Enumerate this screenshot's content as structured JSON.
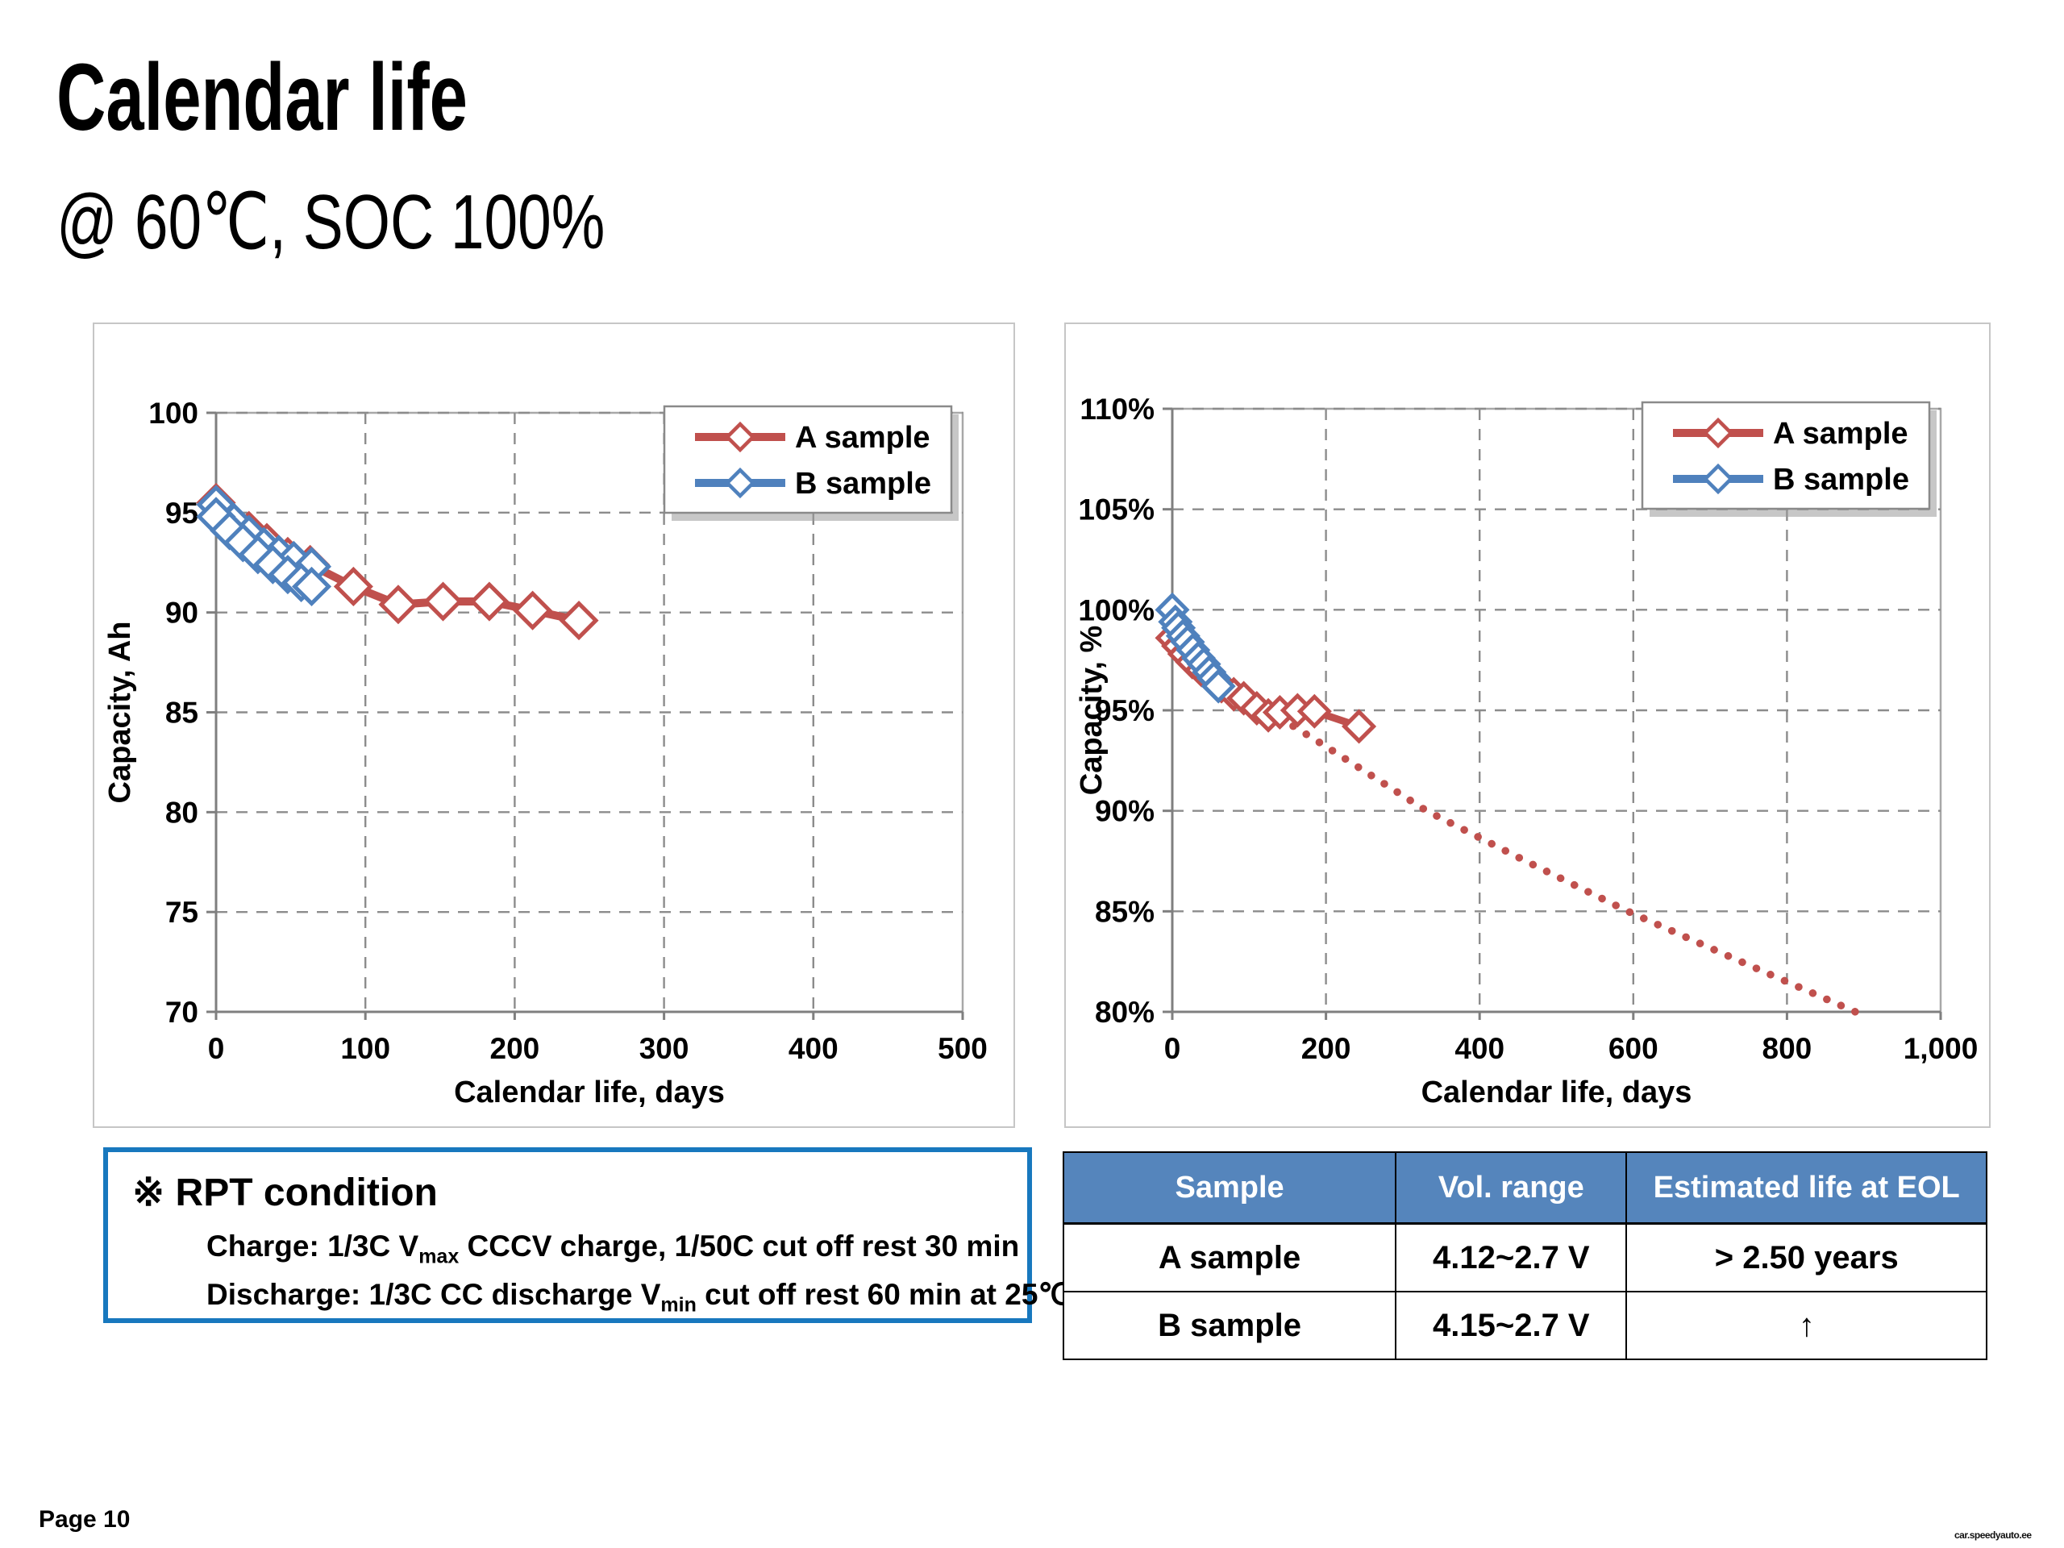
{
  "slide": {
    "title": "Calendar life",
    "subtitle": "@ 60℃, SOC 100%",
    "page_label": "Page 10",
    "watermark": "car.speedyauto.ee"
  },
  "colors": {
    "a_sample": "#c0504d",
    "b_sample": "#4f81bd",
    "table_header_bg": "#5585bc",
    "rpt_border": "#1878be",
    "grid": "#8c8c8c",
    "axis": "#7f7f7f"
  },
  "rpt_box": {
    "heading": "※ RPT condition",
    "lines": [
      {
        "pre": "Charge: 1/3C V",
        "sub": "max",
        "post": " CCCV charge, 1/50C cut off rest 30 min"
      },
      {
        "pre": "Discharge: 1/3C CC discharge V",
        "sub": "min",
        "post": " cut off  rest 60 min at 25℃"
      }
    ]
  },
  "table": {
    "headers": [
      "Sample",
      "Vol. range",
      "Estimated life at EOL"
    ],
    "rows": [
      [
        "A sample",
        "4.12~2.7 V",
        "> 2.50 years"
      ],
      [
        "B sample",
        "4.15~2.7 V",
        "↑"
      ]
    ]
  },
  "chart_data": [
    {
      "type": "line",
      "title": "",
      "xlabel": "Calendar life, days",
      "ylabel": "Capacity, Ah",
      "xlim": [
        0,
        500
      ],
      "ylim": [
        70,
        100
      ],
      "xticks": [
        0,
        100,
        200,
        300,
        400,
        500
      ],
      "xtick_labels": [
        "0",
        "100",
        "200",
        "300",
        "400",
        "500"
      ],
      "yticks": [
        70,
        75,
        80,
        85,
        90,
        95,
        100
      ],
      "ytick_labels": [
        "70",
        "75",
        "80",
        "85",
        "90",
        "95",
        "100"
      ],
      "grid": true,
      "legend_position": "top-right",
      "legend": [
        {
          "label": "A sample",
          "color": "#c0504d"
        },
        {
          "label": "B sample",
          "color": "#4f81bd"
        }
      ],
      "series": [
        {
          "name": "A sample",
          "color": "#c0504d",
          "style": "solid",
          "width": 10,
          "marker": "diamond",
          "marker_size": 21,
          "points": [
            [
              0,
              95.5
            ],
            [
              10,
              94.6
            ],
            [
              22,
              94.1
            ],
            [
              34,
              93.5
            ],
            [
              48,
              92.8
            ],
            [
              63,
              92.4
            ],
            [
              92,
              91.3
            ],
            [
              122,
              90.4
            ],
            [
              152,
              90.55
            ],
            [
              183,
              90.55
            ],
            [
              212,
              90.1
            ],
            [
              243,
              89.6
            ]
          ]
        },
        {
          "name": "B sample",
          "color": "#4f81bd",
          "style": "solid",
          "width": 11,
          "marker": "diamond",
          "marker_size": 21,
          "points": [
            [
              0,
              95.4
            ],
            [
              12,
              94.5
            ],
            [
              22,
              93.9
            ],
            [
              32,
              93.3
            ],
            [
              42,
              92.9
            ],
            [
              52,
              92.6
            ],
            [
              64,
              92.3
            ]
          ]
        },
        {
          "name": "B sample",
          "color": "#4f81bd",
          "style": "solid",
          "width": 11,
          "marker": "diamond",
          "marker_size": 21,
          "points": [
            [
              0,
              94.8
            ],
            [
              9,
              94.1
            ],
            [
              18,
              93.5
            ],
            [
              28,
              92.9
            ],
            [
              38,
              92.4
            ],
            [
              48,
              91.9
            ],
            [
              57,
              91.5
            ],
            [
              64,
              91.3
            ]
          ]
        }
      ]
    },
    {
      "type": "line",
      "title": "",
      "xlabel": "Calendar life, days",
      "ylabel": "Capacity, %",
      "xlim": [
        0,
        1000
      ],
      "ylim": [
        80,
        110
      ],
      "xticks": [
        0,
        200,
        400,
        600,
        800,
        1000
      ],
      "xtick_labels": [
        "0",
        "200",
        "400",
        "600",
        "800",
        "1,000"
      ],
      "yticks": [
        80,
        85,
        90,
        95,
        100,
        105,
        110
      ],
      "ytick_labels": [
        "80%",
        "85%",
        "90%",
        "95%",
        "100%",
        "105%",
        "110%"
      ],
      "grid": true,
      "legend_position": "top-right",
      "legend": [
        {
          "label": "A sample",
          "color": "#c0504d"
        },
        {
          "label": "B sample",
          "color": "#4f81bd"
        }
      ],
      "series": [
        {
          "name": "A sample trend (extrapolated)",
          "color": "#c0504d",
          "style": "dotted",
          "width": 9.5,
          "marker": "none",
          "marker_size": 0,
          "points": [
            [
              58,
              96.8
            ],
            [
              120,
              95.1
            ],
            [
              200,
              93.2
            ],
            [
              331,
              90.0
            ],
            [
              460,
              87.5
            ],
            [
              593,
              85.0
            ],
            [
              740,
              82.5
            ],
            [
              889,
              80.0
            ]
          ]
        },
        {
          "name": "A sample",
          "color": "#c0504d",
          "style": "solid",
          "width": 9,
          "marker": "diamond",
          "marker_size": 18,
          "points": [
            [
              0,
              98.6
            ],
            [
              8,
              98.2
            ],
            [
              16,
              97.8
            ],
            [
              26,
              97.4
            ],
            [
              38,
              97.0
            ],
            [
              50,
              96.6
            ],
            [
              64,
              96.2
            ],
            [
              80,
              95.8
            ],
            [
              93,
              95.6
            ],
            [
              110,
              95.1
            ],
            [
              125,
              94.75
            ],
            [
              140,
              94.9
            ],
            [
              163,
              95.0
            ],
            [
              185,
              94.95
            ],
            [
              243,
              94.2
            ]
          ]
        },
        {
          "name": "B sample",
          "color": "#4f81bd",
          "style": "solid",
          "width": 9,
          "marker": "diamond",
          "marker_size": 18,
          "points": [
            [
              0,
              100
            ],
            [
              4,
              99.4
            ],
            [
              8,
              99.1
            ],
            [
              14,
              98.7
            ],
            [
              20,
              98.4
            ],
            [
              27,
              98.0
            ],
            [
              34,
              97.6
            ],
            [
              41,
              97.3
            ],
            [
              48,
              96.9
            ],
            [
              54,
              96.6
            ],
            [
              60,
              96.2
            ]
          ]
        }
      ]
    }
  ]
}
